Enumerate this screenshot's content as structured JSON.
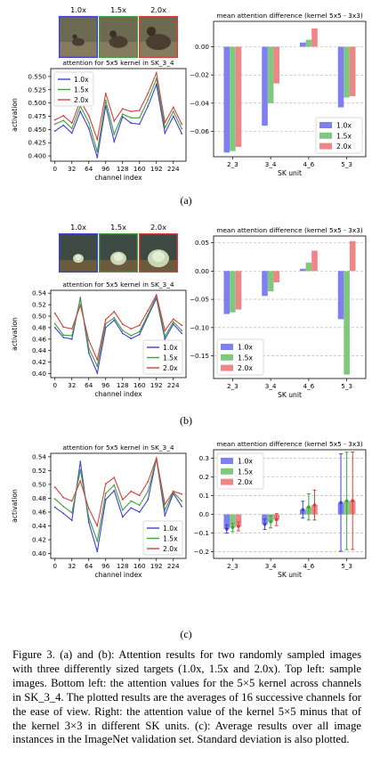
{
  "colors": {
    "s10": "#3f3fd6",
    "s15": "#3fa03f",
    "s20": "#d63f3f",
    "bar10": "#7f7ff2",
    "bar15": "#7fc97f",
    "bar20": "#f08585"
  },
  "chart_data": [
    {
      "type": "line",
      "panel": "(a)",
      "title": "attention for 5x5 kernel in SK_3_4",
      "xlabel": "channel index",
      "ylabel": "activation",
      "xticks": [
        0,
        32,
        64,
        96,
        128,
        160,
        192,
        224
      ],
      "yticks": [
        "0.400",
        "0.425",
        "0.450",
        "0.475",
        "0.500",
        "0.525",
        "0.550"
      ],
      "ylim": [
        0.39,
        0.565
      ],
      "legend": "top-left",
      "images": [
        {
          "label": "1.0x",
          "scene": "duck"
        },
        {
          "label": "1.5x",
          "scene": "duck"
        },
        {
          "label": "2.0x",
          "scene": "duck"
        }
      ],
      "x": [
        0,
        16,
        32,
        48,
        64,
        80,
        96,
        112,
        128,
        144,
        160,
        176,
        192,
        208,
        224,
        240
      ],
      "series": [
        {
          "name": "1.0x",
          "values": [
            0.447,
            0.458,
            0.443,
            0.484,
            0.452,
            0.397,
            0.495,
            0.427,
            0.474,
            0.462,
            0.46,
            0.494,
            0.535,
            0.443,
            0.475,
            0.442
          ]
        },
        {
          "name": "1.5x",
          "values": [
            0.46,
            0.467,
            0.452,
            0.494,
            0.463,
            0.408,
            0.505,
            0.441,
            0.479,
            0.472,
            0.472,
            0.506,
            0.546,
            0.453,
            0.484,
            0.451
          ]
        },
        {
          "name": "2.0x",
          "values": [
            0.468,
            0.476,
            0.462,
            0.504,
            0.476,
            0.431,
            0.518,
            0.466,
            0.489,
            0.484,
            0.486,
            0.518,
            0.557,
            0.463,
            0.492,
            0.46
          ]
        }
      ]
    },
    {
      "type": "bar",
      "panel": "(a)",
      "title": "mean attention difference (kernel 5x5 - 3x3)",
      "xlabel": "SK unit",
      "ylabel": "",
      "categories": [
        "2_3",
        "3_4",
        "4_6",
        "5_3"
      ],
      "yticks": [
        "−0.06",
        "−0.04",
        "−0.02",
        "0.00"
      ],
      "ylim": [
        -0.078,
        0.018
      ],
      "legend": "bottom-right",
      "series": [
        {
          "name": "1.0x",
          "values": [
            -0.075,
            -0.056,
            0.003,
            -0.043
          ]
        },
        {
          "name": "1.5x",
          "values": [
            -0.074,
            -0.04,
            0.005,
            -0.036
          ]
        },
        {
          "name": "2.0x",
          "values": [
            -0.071,
            -0.026,
            0.013,
            -0.035
          ]
        }
      ]
    },
    {
      "type": "line",
      "panel": "(b)",
      "title": "attention for 5x5 kernel in SK_3_4",
      "xlabel": "channel index",
      "ylabel": "activation",
      "xticks": [
        0,
        32,
        64,
        96,
        128,
        160,
        192,
        224
      ],
      "yticks": [
        "0.40",
        "0.42",
        "0.44",
        "0.46",
        "0.48",
        "0.50",
        "0.52",
        "0.54"
      ],
      "ylim": [
        0.393,
        0.545
      ],
      "legend": "bottom-right",
      "images": [
        {
          "label": "1.0x",
          "scene": "cabbage"
        },
        {
          "label": "1.5x",
          "scene": "cabbage"
        },
        {
          "label": "2.0x",
          "scene": "cabbage"
        }
      ],
      "x": [
        0,
        16,
        32,
        48,
        64,
        80,
        96,
        112,
        128,
        144,
        160,
        176,
        192,
        208,
        224,
        240
      ],
      "series": [
        {
          "name": "1.0x",
          "values": [
            0.48,
            0.463,
            0.46,
            0.532,
            0.436,
            0.401,
            0.48,
            0.493,
            0.47,
            0.461,
            0.468,
            0.5,
            0.531,
            0.46,
            0.486,
            0.47
          ]
        },
        {
          "name": "1.5x",
          "values": [
            0.487,
            0.467,
            0.466,
            0.53,
            0.444,
            0.413,
            0.487,
            0.497,
            0.475,
            0.466,
            0.473,
            0.503,
            0.534,
            0.465,
            0.49,
            0.475
          ]
        },
        {
          "name": "2.0x",
          "values": [
            0.505,
            0.481,
            0.478,
            0.519,
            0.458,
            0.424,
            0.494,
            0.508,
            0.486,
            0.478,
            0.484,
            0.51,
            0.537,
            0.475,
            0.495,
            0.484
          ]
        }
      ]
    },
    {
      "type": "bar",
      "panel": "(b)",
      "title": "mean attention difference (kernel 5x5 - 3x3)",
      "xlabel": "SK unit",
      "ylabel": "",
      "categories": [
        "2_3",
        "3_4",
        "4_6",
        "5_3"
      ],
      "yticks": [
        "−0.15",
        "−0.10",
        "−0.05",
        "0.00",
        "0.05"
      ],
      "ylim": [
        -0.19,
        0.062
      ],
      "legend": "bottom-left",
      "series": [
        {
          "name": "1.0x",
          "values": [
            -0.076,
            -0.044,
            0.004,
            -0.085
          ]
        },
        {
          "name": "1.5x",
          "values": [
            -0.073,
            -0.036,
            0.015,
            -0.183
          ]
        },
        {
          "name": "2.0x",
          "values": [
            -0.068,
            -0.02,
            0.036,
            0.053
          ]
        }
      ]
    },
    {
      "type": "line",
      "panel": "(c)",
      "title": "attention for 5x5 kernel in SK_3_4",
      "xlabel": "channel index",
      "ylabel": "activation",
      "xticks": [
        0,
        32,
        64,
        96,
        128,
        160,
        192,
        224
      ],
      "yticks": [
        "0.40",
        "0.42",
        "0.44",
        "0.46",
        "0.48",
        "0.50",
        "0.52",
        "0.54"
      ],
      "ylim": [
        0.393,
        0.545
      ],
      "legend": "bottom-right",
      "x": [
        0,
        16,
        32,
        48,
        64,
        80,
        96,
        112,
        128,
        144,
        160,
        176,
        192,
        208,
        224,
        240
      ],
      "series": [
        {
          "name": "1.0x",
          "values": [
            0.467,
            0.458,
            0.448,
            0.533,
            0.445,
            0.403,
            0.478,
            0.491,
            0.453,
            0.466,
            0.46,
            0.478,
            0.537,
            0.455,
            0.487,
            0.468
          ]
        },
        {
          "name": "1.5x",
          "values": [
            0.479,
            0.468,
            0.459,
            0.521,
            0.452,
            0.418,
            0.487,
            0.499,
            0.463,
            0.476,
            0.47,
            0.49,
            0.537,
            0.463,
            0.489,
            0.476
          ]
        },
        {
          "name": "2.0x",
          "values": [
            0.496,
            0.481,
            0.476,
            0.505,
            0.465,
            0.44,
            0.501,
            0.51,
            0.478,
            0.49,
            0.484,
            0.504,
            0.538,
            0.471,
            0.49,
            0.486
          ]
        }
      ]
    },
    {
      "type": "bar",
      "panel": "(c)",
      "title": "mean attention difference (kernel 5x5 - 3x3)",
      "xlabel": "SK unit",
      "ylabel": "",
      "style": "errorbar",
      "categories": [
        "2_3",
        "3_4",
        "4_6",
        "5_3"
      ],
      "yticks": [
        "−0.2",
        "−0.1",
        "0.0",
        "0.1",
        "0.2",
        "0.3"
      ],
      "ylim": [
        -0.235,
        0.345
      ],
      "legend": "top-left",
      "series": [
        {
          "name": "1.0x",
          "values": [
            -0.078,
            -0.053,
            0.025,
            0.063
          ],
          "err": [
            0.022,
            0.028,
            0.045,
            0.26
          ]
        },
        {
          "name": "1.5x",
          "values": [
            -0.07,
            -0.04,
            0.04,
            0.072
          ],
          "err": [
            0.022,
            0.032,
            0.07,
            0.26
          ]
        },
        {
          "name": "2.0x",
          "values": [
            -0.064,
            -0.028,
            0.05,
            0.073
          ],
          "err": [
            0.024,
            0.032,
            0.08,
            0.26
          ]
        }
      ]
    }
  ],
  "panel_labels": [
    "(a)",
    "(b)",
    "(c)"
  ],
  "caption": "Figure 3. (a) and (b): Attention results for two randomly sampled images with three differently sized targets (1.0x, 1.5x and 2.0x). Top left: sample images. Bottom left: the attention values for the 5×5 kernel across channels in SK_3_4. The plotted results are the averages of 16 successive channels for the ease of view. Right: the attention value of the kernel 5×5 minus that of the kernel 3×3 in different SK units. (c): Average results over all image instances in the ImageNet validation set. Standard deviation is also plotted."
}
